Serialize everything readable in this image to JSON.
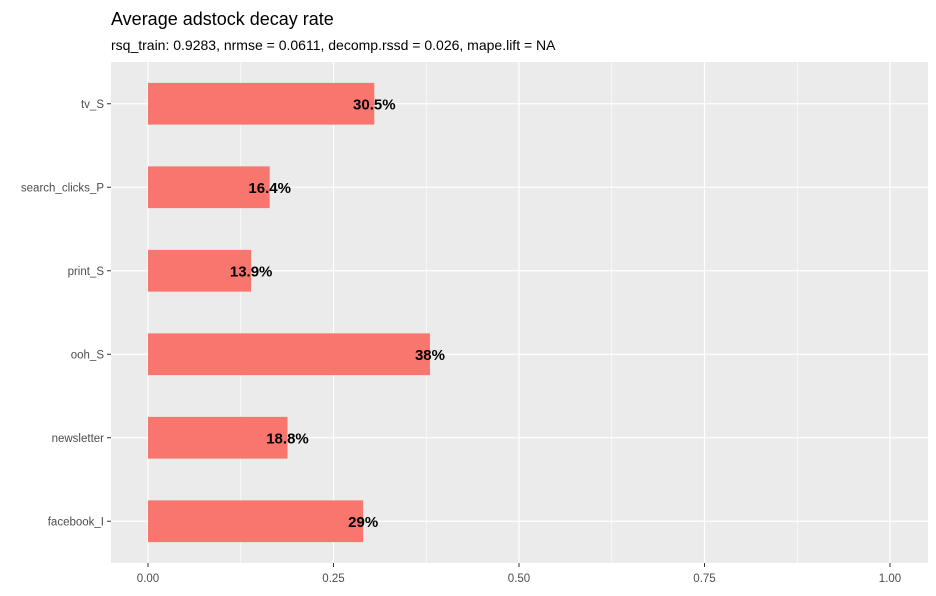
{
  "chart_data": {
    "type": "bar",
    "orientation": "horizontal",
    "title": "Average adstock decay rate",
    "subtitle": "rsq_train: 0.9283, nrmse = 0.0611, decomp.rssd = 0.026, mape.lift = NA",
    "xlabel": "",
    "ylabel": "",
    "categories": [
      "tv_S",
      "search_clicks_P",
      "print_S",
      "ooh_S",
      "newsletter",
      "facebook_I"
    ],
    "values": [
      0.305,
      0.164,
      0.139,
      0.38,
      0.188,
      0.29
    ],
    "data_labels": [
      "30.5%",
      "16.4%",
      "13.9%",
      "38%",
      "18.8%",
      "29%"
    ],
    "xlim": [
      0,
      1
    ],
    "xticks": [
      0,
      0.25,
      0.5,
      0.75,
      1.0
    ],
    "xtick_labels": [
      "0.00",
      "0.25",
      "0.50",
      "0.75",
      "1.00"
    ],
    "grid": true,
    "legend": "none",
    "colors": {
      "bar": "#F8766D",
      "panel": "#EBEBEB",
      "grid": "#FFFFFF"
    }
  }
}
